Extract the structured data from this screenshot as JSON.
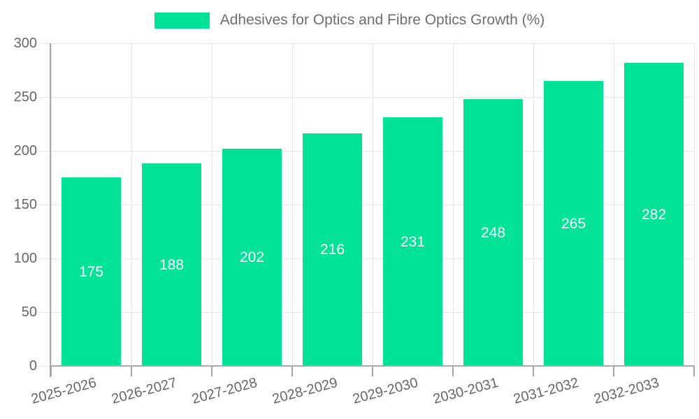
{
  "chart_data": {
    "type": "bar",
    "title": "Adhesives for Optics and Fibre Optics Growth (%)",
    "categories": [
      "2025-2026",
      "2026-2027",
      "2027-2028",
      "2028-2029",
      "2029-2030",
      "2030-2031",
      "2031-2032",
      "2032-2033"
    ],
    "series": [
      {
        "name": "Adhesives for Optics and Fibre Optics Growth (%)",
        "values": [
          175,
          188,
          202,
          216,
          231,
          248,
          265,
          282
        ]
      }
    ],
    "values": [
      175,
      188,
      202,
      216,
      231,
      248,
      265,
      282
    ],
    "bar_labels": [
      "175",
      "188",
      "202",
      "216",
      "231",
      "248",
      "265",
      "282"
    ],
    "xlabel": "",
    "ylabel": "",
    "ylim": [
      0,
      300
    ],
    "yticks": [
      0,
      50,
      100,
      150,
      200,
      250,
      300
    ],
    "grid": true,
    "legend_position": "top"
  },
  "colors": {
    "bar": "#00E396",
    "grid": "#e4e4e4",
    "axis_line": "#aaaaaa",
    "tick": "#a3a3a3",
    "axis_text": "#666666",
    "legend_text": "#6e6e6e",
    "value_label": "#ffffff",
    "background": "#ffffff"
  }
}
